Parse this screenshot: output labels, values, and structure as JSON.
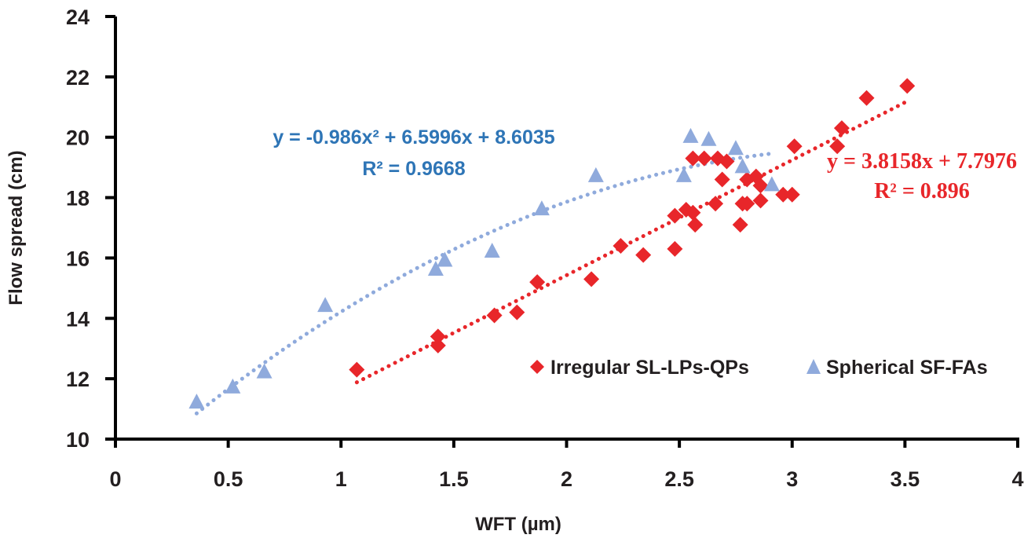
{
  "chart_data": {
    "type": "scatter",
    "title": "",
    "xlabel": "WFT (µm)",
    "ylabel": "Flow spread (cm)",
    "xlim": [
      0,
      4
    ],
    "ylim": [
      10,
      24
    ],
    "x_ticks": [
      0,
      0.5,
      1,
      1.5,
      2,
      2.5,
      3,
      3.5,
      4
    ],
    "x_tick_labels": [
      "0",
      "0.5",
      "1",
      "1.5",
      "2",
      "2.5",
      "3",
      "3.5",
      "4"
    ],
    "y_ticks": [
      10,
      12,
      14,
      16,
      18,
      20,
      22,
      24
    ],
    "y_tick_labels": [
      "10",
      "12",
      "14",
      "16",
      "18",
      "20",
      "22",
      "24"
    ],
    "grid": false,
    "legend_position": "bottom-right",
    "series": [
      {
        "name": "Irregular SL-LPs-QPs",
        "marker": "diamond",
        "color": "#e8262a",
        "points": [
          [
            1.07,
            12.3
          ],
          [
            1.43,
            13.4
          ],
          [
            1.43,
            13.1
          ],
          [
            1.68,
            14.1
          ],
          [
            1.78,
            14.2
          ],
          [
            1.87,
            15.2
          ],
          [
            2.11,
            15.3
          ],
          [
            2.24,
            16.4
          ],
          [
            2.34,
            16.1
          ],
          [
            2.48,
            16.3
          ],
          [
            2.48,
            17.4
          ],
          [
            2.53,
            17.6
          ],
          [
            2.56,
            17.5
          ],
          [
            2.57,
            17.1
          ],
          [
            2.56,
            19.3
          ],
          [
            2.61,
            19.3
          ],
          [
            2.66,
            17.8
          ],
          [
            2.67,
            19.3
          ],
          [
            2.69,
            18.6
          ],
          [
            2.71,
            19.2
          ],
          [
            2.77,
            17.1
          ],
          [
            2.78,
            17.8
          ],
          [
            2.8,
            17.8
          ],
          [
            2.8,
            18.6
          ],
          [
            2.84,
            18.7
          ],
          [
            2.86,
            18.4
          ],
          [
            2.86,
            17.9
          ],
          [
            2.96,
            18.1
          ],
          [
            3.0,
            18.1
          ],
          [
            3.01,
            19.7
          ],
          [
            3.2,
            19.7
          ],
          [
            3.22,
            20.3
          ],
          [
            3.33,
            21.3
          ],
          [
            3.51,
            21.7
          ]
        ],
        "trendline": {
          "type": "linear",
          "coefficients": {
            "slope": 3.8158,
            "intercept": 7.7976
          },
          "x_range": [
            1.07,
            3.51
          ],
          "style": "dotted",
          "color": "#e8262a",
          "equation_label": "y = 3.8158x + 7.7976",
          "r2_label": "R² = 0.896"
        }
      },
      {
        "name": "Spherical SF-FAs",
        "marker": "triangle",
        "color": "#8faadc",
        "points": [
          [
            0.36,
            11.2
          ],
          [
            0.52,
            11.7
          ],
          [
            0.66,
            12.2
          ],
          [
            0.93,
            14.4
          ],
          [
            1.42,
            15.6
          ],
          [
            1.46,
            15.9
          ],
          [
            1.67,
            16.2
          ],
          [
            1.89,
            17.6
          ],
          [
            2.13,
            18.7
          ],
          [
            2.52,
            18.7
          ],
          [
            2.55,
            20.0
          ],
          [
            2.63,
            19.9
          ],
          [
            2.75,
            19.6
          ],
          [
            2.78,
            19.0
          ],
          [
            2.91,
            18.4
          ]
        ],
        "trendline": {
          "type": "polynomial",
          "coefficients": {
            "a2": -0.986,
            "a1": 6.5996,
            "a0": 8.6035
          },
          "x_range": [
            0.36,
            2.91
          ],
          "style": "dotted",
          "color": "#8faadc",
          "equation_label": "y = -0.986x² + 6.5996x + 8.6035",
          "r2_label": "R² = 0.9668"
        }
      }
    ],
    "annotations": [
      {
        "text": "y = -0.986x² + 6.5996x + 8.6035",
        "color": "#2e75b6",
        "anchor": "upper-left"
      },
      {
        "text": "R² = 0.9668",
        "color": "#2e75b6",
        "anchor": "upper-left"
      },
      {
        "text": "y = 3.8158x + 7.7976",
        "color": "#e8262a",
        "anchor": "right"
      },
      {
        "text": "R² = 0.896",
        "color": "#e8262a",
        "anchor": "right"
      }
    ]
  }
}
